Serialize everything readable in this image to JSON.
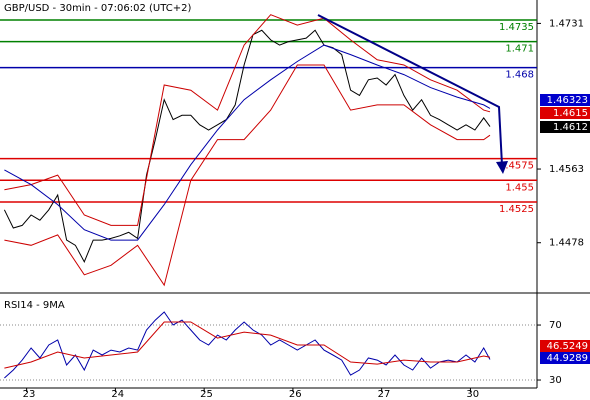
{
  "chart_data": [
    {
      "type": "line",
      "title": "GBP/USD - 30min - 07:06:02 (UTC+2)",
      "xlim": [
        -0.3,
        5.75
      ],
      "ylim": [
        1.442,
        1.4758
      ],
      "yticks": [
        1.4731,
        1.4563,
        1.4478
      ],
      "series": [
        {
          "name": "price",
          "color": "#000000",
          "x": [
            -0.25,
            -0.15,
            -0.05,
            0.05,
            0.15,
            0.25,
            0.35,
            0.45,
            0.55,
            0.65,
            0.75,
            0.85,
            0.95,
            1.05,
            1.15,
            1.25,
            1.35,
            1.45,
            1.55,
            1.65,
            1.75,
            1.85,
            1.95,
            2.05,
            2.15,
            2.25,
            2.35,
            2.45,
            2.55,
            2.65,
            2.75,
            2.85,
            2.95,
            3.05,
            3.15,
            3.25,
            3.35,
            3.45,
            3.55,
            3.65,
            3.75,
            3.85,
            3.95,
            4.05,
            4.15,
            4.25,
            4.35,
            4.45,
            4.55,
            4.65,
            4.75,
            4.85,
            4.95,
            5.05,
            5.15,
            5.22
          ],
          "values": [
            1.4516,
            1.4495,
            1.4498,
            1.451,
            1.4504,
            1.4516,
            1.4533,
            1.4481,
            1.4475,
            1.4456,
            1.4481,
            1.4481,
            1.4483,
            1.4486,
            1.449,
            1.4483,
            1.4556,
            1.4597,
            1.4643,
            1.462,
            1.4625,
            1.4625,
            1.4614,
            1.4608,
            1.4614,
            1.462,
            1.4637,
            1.4683,
            1.4718,
            1.4723,
            1.4712,
            1.4706,
            1.471,
            1.4712,
            1.4714,
            1.4723,
            1.4706,
            1.4703,
            1.4695,
            1.4654,
            1.4648,
            1.4666,
            1.4668,
            1.466,
            1.4672,
            1.4648,
            1.4631,
            1.4643,
            1.4625,
            1.462,
            1.4614,
            1.4608,
            1.4614,
            1.4608,
            1.4622,
            1.4612
          ]
        },
        {
          "name": "upper band",
          "color": "#cc0000",
          "x": [
            -0.25,
            0.05,
            0.35,
            0.65,
            0.95,
            1.25,
            1.55,
            1.85,
            2.15,
            2.45,
            2.75,
            3.05,
            3.35,
            3.65,
            3.95,
            4.25,
            4.55,
            4.85,
            5.15,
            5.22
          ],
          "values": [
            1.4539,
            1.4545,
            1.4556,
            1.451,
            1.4498,
            1.4498,
            1.466,
            1.4654,
            1.4631,
            1.4706,
            1.4741,
            1.4729,
            1.4737,
            1.4712,
            1.4689,
            1.4683,
            1.4666,
            1.4654,
            1.4631,
            1.4629
          ]
        },
        {
          "name": "lower band",
          "color": "#cc0000",
          "x": [
            -0.25,
            0.05,
            0.35,
            0.65,
            0.95,
            1.25,
            1.55,
            1.85,
            2.15,
            2.45,
            2.75,
            3.05,
            3.35,
            3.65,
            3.95,
            4.25,
            4.55,
            4.85,
            5.15,
            5.22
          ],
          "values": [
            1.4481,
            1.4475,
            1.4487,
            1.4441,
            1.4452,
            1.4475,
            1.4429,
            1.455,
            1.4597,
            1.4597,
            1.4631,
            1.4683,
            1.4683,
            1.4631,
            1.4637,
            1.4637,
            1.4614,
            1.4597,
            1.4597,
            1.4602
          ]
        },
        {
          "name": "moving average",
          "color": "#0000aa",
          "x": [
            -0.25,
            0.05,
            0.35,
            0.65,
            0.95,
            1.25,
            1.55,
            1.85,
            2.15,
            2.45,
            2.75,
            3.05,
            3.35,
            3.65,
            3.95,
            4.25,
            4.55,
            4.85,
            5.15,
            5.22
          ],
          "values": [
            1.4562,
            1.4545,
            1.4522,
            1.4493,
            1.4481,
            1.4481,
            1.4522,
            1.4568,
            1.4608,
            1.4643,
            1.4666,
            1.4687,
            1.4706,
            1.4695,
            1.4683,
            1.4672,
            1.4657,
            1.4646,
            1.4637,
            1.4633
          ]
        }
      ],
      "levels": [
        {
          "value": 1.4735,
          "color": "#008000"
        },
        {
          "value": 1.471,
          "color": "#008000"
        },
        {
          "value": 1.468,
          "color": "#0000aa"
        },
        {
          "value": 1.4575,
          "color": "#dd0000"
        },
        {
          "value": 1.455,
          "color": "#dd0000"
        },
        {
          "value": 1.4525,
          "color": "#dd0000"
        }
      ],
      "price_labels": [
        {
          "value": 1.46323,
          "color": "#0000cc"
        },
        {
          "value": 1.4615,
          "color": "#dd0000"
        },
        {
          "value": 1.4612,
          "color": "#000000"
        }
      ]
    },
    {
      "type": "line",
      "title": "RSI14 - 9MA",
      "xlim": [
        -0.3,
        5.75
      ],
      "ylim": [
        24.2,
        90.4
      ],
      "yticks": [
        70,
        30
      ],
      "xticks": [
        {
          "value": 0,
          "label": "23"
        },
        {
          "value": 1,
          "label": "24"
        },
        {
          "value": 2,
          "label": "25"
        },
        {
          "value": 3,
          "label": "26"
        },
        {
          "value": 4,
          "label": "27"
        },
        {
          "value": 5,
          "label": "30"
        }
      ],
      "series": [
        {
          "name": "RSI14",
          "color": "#0000aa",
          "x": [
            -0.25,
            -0.15,
            -0.05,
            0.05,
            0.15,
            0.25,
            0.35,
            0.45,
            0.55,
            0.65,
            0.75,
            0.85,
            0.95,
            1.05,
            1.15,
            1.25,
            1.35,
            1.45,
            1.55,
            1.65,
            1.75,
            1.85,
            1.95,
            2.05,
            2.15,
            2.25,
            2.35,
            2.45,
            2.55,
            2.65,
            2.75,
            2.85,
            2.95,
            3.05,
            3.15,
            3.25,
            3.35,
            3.45,
            3.55,
            3.65,
            3.75,
            3.85,
            3.95,
            4.05,
            4.15,
            4.25,
            4.35,
            4.45,
            4.55,
            4.65,
            4.75,
            4.85,
            4.95,
            5.05,
            5.15,
            5.22
          ],
          "values": [
            31.5,
            37.3,
            44.5,
            53.3,
            46.0,
            55.5,
            59.1,
            40.9,
            48.2,
            37.3,
            51.8,
            48.2,
            51.8,
            50.4,
            53.3,
            51.8,
            66.4,
            73.6,
            79.5,
            70,
            73.6,
            66.4,
            59.1,
            55.5,
            62.7,
            59.1,
            66.4,
            72.2,
            66.4,
            62.7,
            55.5,
            59.1,
            55.5,
            51.8,
            55.5,
            59.1,
            51.8,
            48.2,
            44.5,
            33.6,
            37.3,
            46.0,
            44.5,
            40.9,
            48.2,
            40.9,
            37.3,
            46.0,
            38.7,
            43.1,
            44.5,
            43.1,
            48.2,
            43.1,
            53.3,
            44.9
          ]
        },
        {
          "name": "9MA",
          "color": "#cc0000",
          "x": [
            -0.25,
            0.05,
            0.35,
            0.65,
            0.95,
            1.25,
            1.55,
            1.85,
            2.15,
            2.45,
            2.75,
            3.05,
            3.35,
            3.65,
            3.95,
            4.25,
            4.55,
            4.85,
            5.15,
            5.22
          ],
          "values": [
            38.7,
            43.1,
            50.4,
            46.0,
            48.2,
            50.4,
            72.2,
            72.2,
            60.5,
            64.9,
            62.7,
            55.5,
            55.5,
            43.1,
            41.6,
            44.5,
            43.1,
            43.1,
            47.5,
            46.5
          ]
        }
      ],
      "price_labels": [
        {
          "value": 46.5249,
          "color": "#dd0000"
        },
        {
          "value": 44.9289,
          "color": "#0000cc"
        }
      ]
    }
  ]
}
